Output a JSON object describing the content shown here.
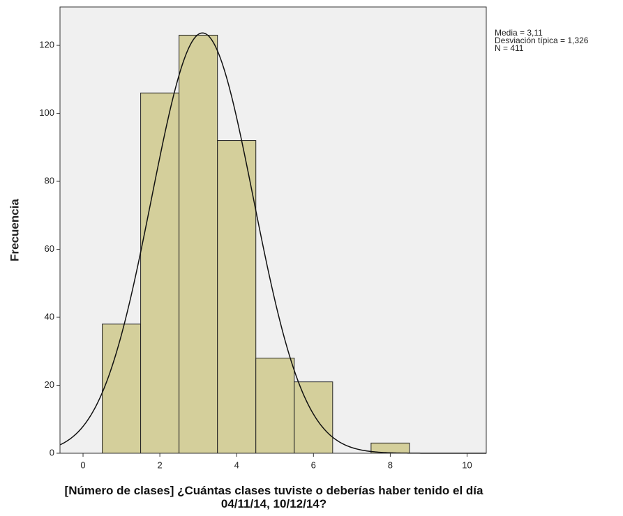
{
  "chart_data": {
    "type": "histogram",
    "xlabel": "[Número de clases] ¿Cuántas clases tuviste o deberías haber tenido el día 04/11/14, 10/12/14?",
    "ylabel": "Frecuencia",
    "bins": [
      0.5,
      1.5,
      2.5,
      3.5,
      4.5,
      5.5,
      6.5,
      7.5,
      8.5
    ],
    "values": [
      38,
      106,
      123,
      92,
      28,
      21,
      0,
      3
    ],
    "color": "#d4cf9b",
    "xlim": [
      -0.6,
      10.5
    ],
    "xticks": [
      0,
      2,
      4,
      6,
      8,
      10
    ],
    "ylim": [
      0,
      131.3
    ],
    "yticks": [
      0,
      20,
      40,
      60,
      80,
      100,
      120
    ],
    "stats": [
      {
        "label": "Media = 3,11",
        "value": 3.11
      },
      {
        "label": "Desviación típica = 1,326",
        "value": 1.326
      },
      {
        "label": "N = 411",
        "value": 411
      }
    ]
  }
}
